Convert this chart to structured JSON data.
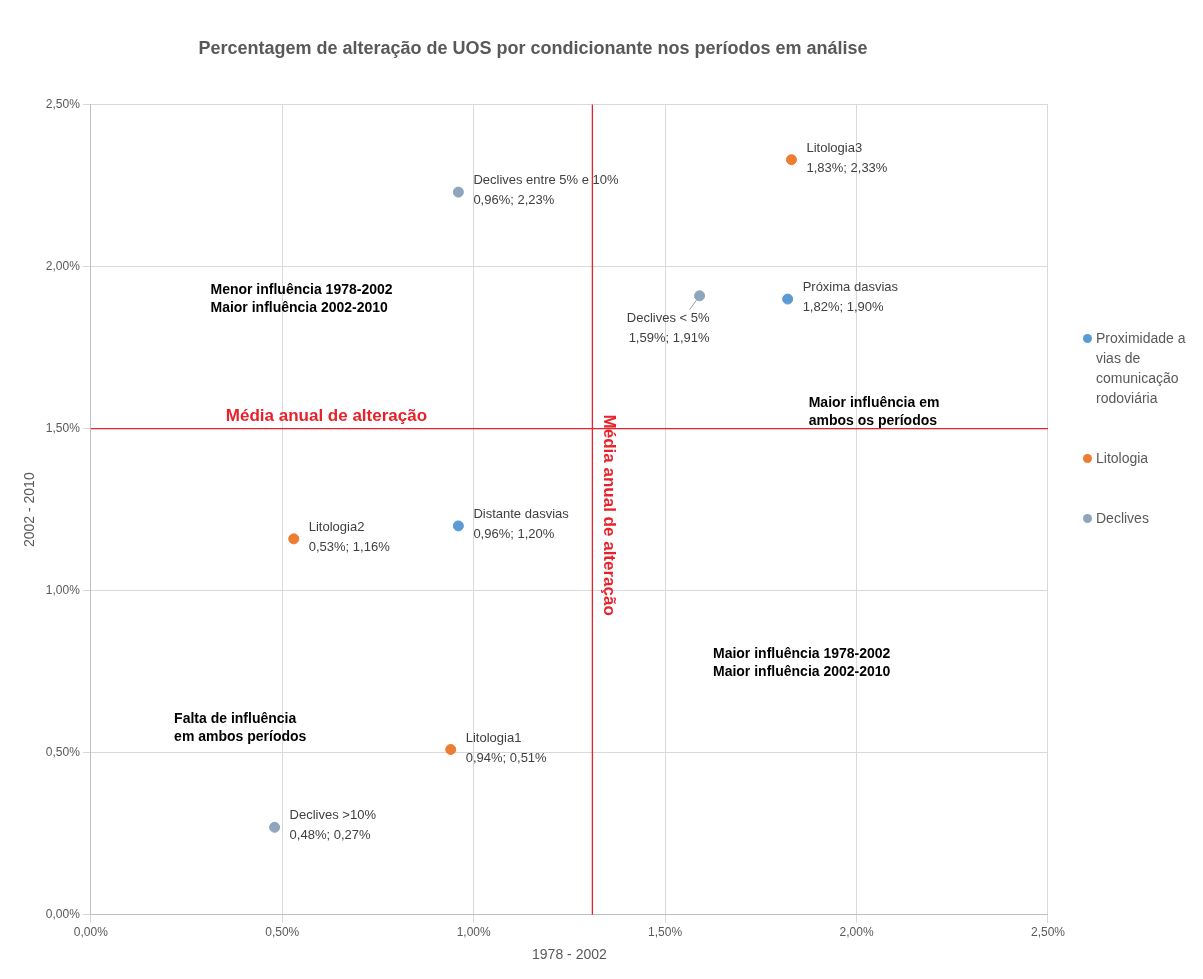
{
  "chart_data": {
    "type": "scatter",
    "title": "Percentagem de alteração de UOS por condicionante nos períodos em análise",
    "xlabel": "1978 - 2002",
    "ylabel": "2002 - 2010",
    "series": [
      {
        "name": "Proximidade a vias de comunicação rodoviária",
        "color": "#5b9bd5",
        "x": [
          1.82,
          0.96
        ],
        "values": [
          1.9,
          1.2
        ],
        "value_labels": [
          "Próxima dasvias\n1,82%; 1,90%",
          "Distante dasvias\n0,96%; 1,20%"
        ]
      },
      {
        "name": "Litologia",
        "color": "#ed7d31",
        "x": [
          1.83,
          0.53,
          0.94
        ],
        "values": [
          2.33,
          1.16,
          0.51
        ],
        "value_labels": [
          "Litologia3\n1,83%; 2,33%",
          "Litologia2\n0,53%; 1,16%",
          "Litologia1\n0,94%; 0,51%"
        ]
      },
      {
        "name": "Declives",
        "color": "#8ea5bd",
        "x": [
          0.96,
          1.59,
          0.48
        ],
        "values": [
          2.23,
          1.91,
          0.27
        ],
        "value_labels": [
          "Declives entre 5% e 10%\n0,96%; 2,23%",
          "Declives < 5%\n1,59%; 1,91%",
          "Declives >10%\n0,48%; 0,27%"
        ]
      }
    ],
    "xlim": [
      0,
      2.5
    ],
    "ylim": [
      0,
      2.5
    ],
    "xticks": [
      {
        "value": 0,
        "label": "0,00%"
      },
      {
        "value": 0.5,
        "label": "0,50%"
      },
      {
        "value": 1,
        "label": "1,00%"
      },
      {
        "value": 1.5,
        "label": "1,50%"
      },
      {
        "value": 2,
        "label": "2,00%"
      },
      {
        "value": 2.5,
        "label": "2,50%"
      }
    ],
    "yticks": [
      {
        "value": 0,
        "label": "0,00%"
      },
      {
        "value": 0.5,
        "label": "0,50%"
      },
      {
        "value": 1,
        "label": "1,00%"
      },
      {
        "value": 1.5,
        "label": "1,50%"
      },
      {
        "value": 2,
        "label": "2,00%"
      },
      {
        "value": 2.5,
        "label": "2,50%"
      }
    ],
    "ref_lines": [
      {
        "axis": "y",
        "value": 1.5,
        "label": "Média anual de alteração",
        "color": "#e8212b"
      },
      {
        "axis": "x",
        "value": 1.31,
        "label": "Média anual de alteração",
        "color": "#e8212b"
      }
    ],
    "annotations": [
      "Menor influência 1978-2002\nMaior influência 2002-2010",
      "Maior influência em\nambos os períodos",
      "Falta de influência\nem ambos períodos",
      "Maior influência 1978-2002\nMaior influência 2002-2010"
    ],
    "grid": true,
    "legend": "right",
    "marker": "circle"
  }
}
